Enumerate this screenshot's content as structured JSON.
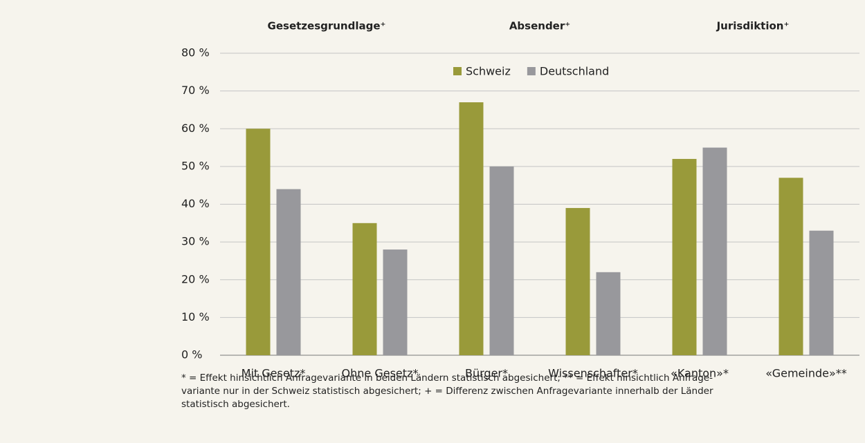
{
  "chart_data": {
    "type": "bar",
    "group_headers": [
      "Gesetzesgrundlage⁺",
      "Absender⁺",
      "Jurisdiktion⁺"
    ],
    "categories": [
      "Mit Gesetz*",
      "Ohne Gesetz*",
      "Bürger*",
      "Wissenschafter*",
      "«Kanton»*",
      "«Gemeinde»**"
    ],
    "series": [
      {
        "name": "Schweiz",
        "color": "#999a3a",
        "values": [
          60,
          35,
          67,
          39,
          52,
          47
        ]
      },
      {
        "name": "Deutschland",
        "color": "#98989c",
        "values": [
          44,
          28,
          50,
          22,
          55,
          33
        ]
      }
    ],
    "ylim": [
      0,
      80
    ],
    "yticks": [
      {
        "value": 0,
        "label": "0 %"
      },
      {
        "value": 10,
        "label": "10 %"
      },
      {
        "value": 20,
        "label": "20 %"
      },
      {
        "value": 30,
        "label": "30 %"
      },
      {
        "value": 40,
        "label": "40 %"
      },
      {
        "value": 50,
        "label": "50 %"
      },
      {
        "value": 60,
        "label": "60 %"
      },
      {
        "value": 70,
        "label": "70 %"
      },
      {
        "value": 80,
        "label": "80 %"
      }
    ],
    "grid": true,
    "legend": "top",
    "footnote": "* = Effekt hinsichtlich Anfragevariante in beiden Ländern statistisch abgesichert; ** = Effekt hinsichtlich Anfrage­variante nur in der Schweiz statistisch abgesichert; + = Differenz zwischen Anfragevariante innerhalb der Länder statistisch abgesichert."
  }
}
